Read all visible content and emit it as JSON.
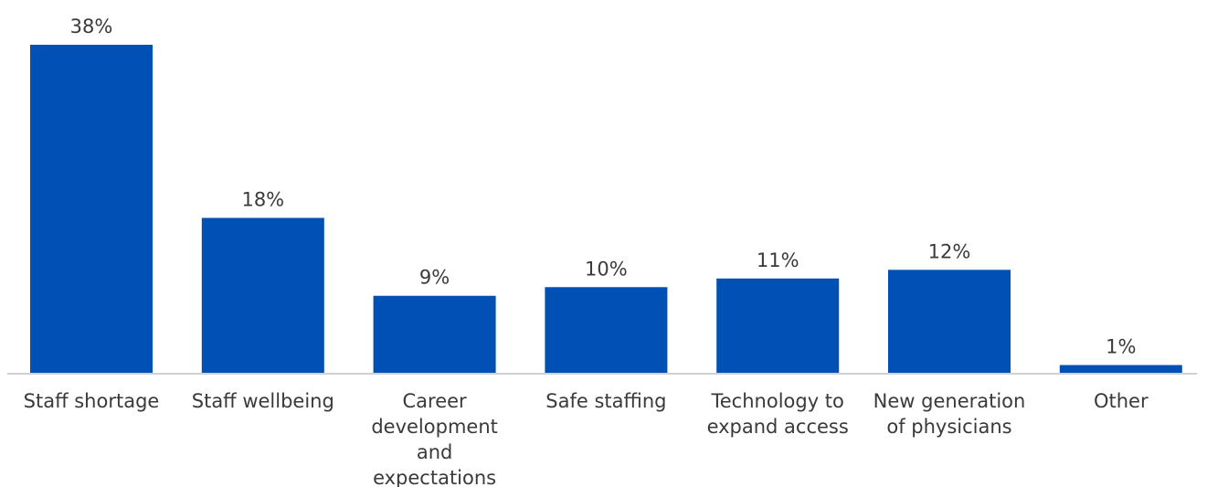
{
  "chart_data": {
    "type": "bar",
    "categories": [
      [
        "Staff shortage"
      ],
      [
        "Staff wellbeing"
      ],
      [
        "Career",
        "development",
        "and",
        "expectations"
      ],
      [
        "Safe staffing"
      ],
      [
        "Technology to",
        "expand access"
      ],
      [
        "New generation",
        "of physicians"
      ],
      [
        "Other"
      ]
    ],
    "values": [
      38,
      18,
      9,
      10,
      11,
      12,
      1
    ],
    "value_labels": [
      "38%",
      "18%",
      "9%",
      "10%",
      "11%",
      "12%",
      "1%"
    ],
    "bar_color": "#0050b5",
    "axis_color": "#d0d0d0",
    "ylim": [
      0,
      38
    ],
    "grid": false,
    "legend": "none"
  }
}
